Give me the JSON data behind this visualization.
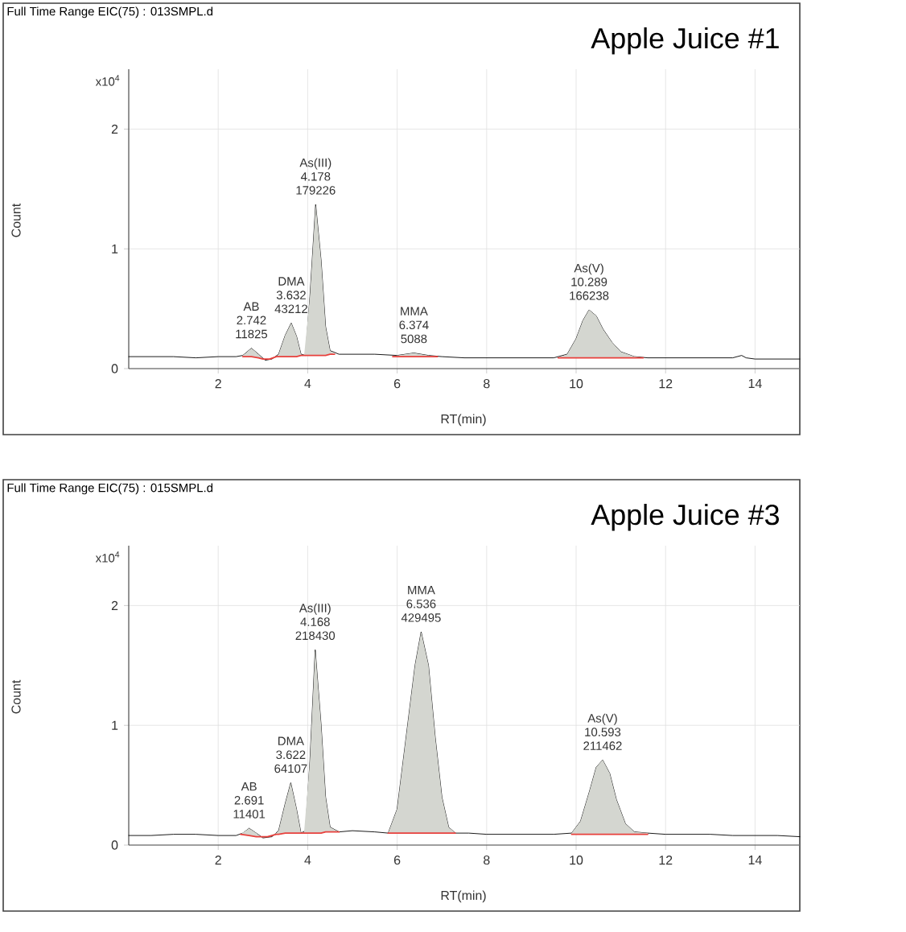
{
  "chart_data": [
    {
      "type": "line",
      "subtitle": "Full Time Range EIC(75) : 013SMPL.d",
      "title": "Apple Juice #1",
      "xlabel": "RT(min)",
      "ylabel": "Count",
      "xlim": [
        0,
        15
      ],
      "ylim": [
        0,
        2.5
      ],
      "xticks": [
        2,
        4,
        6,
        8,
        10,
        12,
        14
      ],
      "yticks": [
        0,
        1,
        2
      ],
      "grid": true,
      "annotations": [
        "x10$^{4}$",
        {
          "text": "AB 2.742 11825",
          "x": 2.742,
          "y": 0.17
        },
        {
          "text": "DMA 3.632 43212",
          "x": 3.632,
          "y": 0.38
        },
        {
          "text": "As(III) 4.178 179226",
          "x": 4.178,
          "y": 1.37
        },
        {
          "text": "MMA 6.374 5088",
          "x": 6.374,
          "y": 0.13
        },
        {
          "text": "As(V) 10.289 166238",
          "x": 10.289,
          "y": 0.49
        }
      ],
      "series": [
        {
          "color": "#000000",
          "x": [
            0,
            0.5,
            1,
            1.5,
            2,
            2.4,
            2.55,
            2.742,
            2.9,
            3.05,
            3.2,
            3.35,
            3.5,
            3.632,
            3.75,
            3.85,
            3.95,
            4.05,
            4.178,
            4.3,
            4.4,
            4.5,
            4.7,
            5,
            5.5,
            6,
            6.374,
            6.7,
            7,
            7.5,
            8,
            8.5,
            9,
            9.5,
            9.8,
            10,
            10.15,
            10.289,
            10.45,
            10.6,
            10.8,
            11,
            11.3,
            11.6,
            12,
            12.5,
            13,
            13.5,
            13.7,
            13.8,
            14,
            14.5,
            15
          ],
          "values": [
            0.1,
            0.1,
            0.1,
            0.09,
            0.1,
            0.1,
            0.11,
            0.17,
            0.12,
            0.07,
            0.08,
            0.12,
            0.28,
            0.38,
            0.27,
            0.12,
            0.11,
            0.6,
            1.37,
            0.9,
            0.35,
            0.15,
            0.12,
            0.12,
            0.12,
            0.11,
            0.13,
            0.11,
            0.1,
            0.09,
            0.09,
            0.09,
            0.09,
            0.09,
            0.12,
            0.25,
            0.4,
            0.49,
            0.44,
            0.33,
            0.22,
            0.14,
            0.1,
            0.09,
            0.09,
            0.09,
            0.09,
            0.09,
            0.11,
            0.09,
            0.08,
            0.08,
            0.08
          ]
        },
        {
          "color": "#e8403c",
          "x": [
            2.55,
            2.742,
            2.9,
            3.0,
            3.15,
            3.3,
            3.35,
            3.5,
            3.632,
            3.75,
            3.85,
            3.92,
            4.05,
            4.178,
            4.3,
            4.4,
            4.5,
            4.6,
            5.2,
            5.9,
            6.0,
            6.374,
            6.7,
            6.9,
            8,
            9.6,
            9.8,
            10.0,
            10.15,
            10.289,
            10.45,
            10.6,
            10.8,
            11.0,
            11.3,
            11.5
          ],
          "values": [
            0.1,
            0.1,
            0.09,
            0.08,
            0.08,
            0.1,
            0.1,
            0.1,
            0.1,
            0.1,
            0.11,
            0.11,
            0.11,
            0.11,
            0.11,
            0.11,
            0.12,
            0.12,
            null,
            0.1,
            0.1,
            0.1,
            0.1,
            0.1,
            null,
            0.09,
            0.09,
            0.09,
            0.09,
            0.09,
            0.09,
            0.09,
            0.09,
            0.09,
            0.09,
            0.09
          ],
          "lower": [
            0.1,
            0.1,
            0.09,
            0.08,
            0.08,
            0.1,
            0.1,
            0.1,
            0.1,
            0.1,
            0.11,
            0.11,
            0.11,
            0.11,
            0.11,
            0.11,
            0.12,
            0.12,
            null,
            0.1,
            0.1,
            0.1,
            0.1,
            0.1,
            null,
            0.09,
            0.09,
            0.09,
            0.09,
            0.09,
            0.09,
            0.09,
            0.09,
            0.09,
            0.09,
            0.09
          ],
          "upper": [
            0.11,
            0.17,
            0.12,
            0.08,
            0.08,
            0.1,
            0.12,
            0.28,
            0.38,
            0.27,
            0.12,
            0.11,
            0.6,
            1.37,
            0.9,
            0.35,
            0.15,
            0.12,
            null,
            0.1,
            0.11,
            0.13,
            0.11,
            0.1,
            null,
            0.09,
            0.12,
            0.25,
            0.4,
            0.49,
            0.44,
            0.33,
            0.22,
            0.14,
            0.1,
            0.09
          ]
        }
      ]
    },
    {
      "type": "line",
      "subtitle": "Full Time Range EIC(75) : 015SMPL.d",
      "title": "Apple Juice #3",
      "xlabel": "RT(min)",
      "ylabel": "Count",
      "xlim": [
        0,
        15
      ],
      "ylim": [
        0,
        2.5
      ],
      "xticks": [
        2,
        4,
        6,
        8,
        10,
        12,
        14
      ],
      "yticks": [
        0,
        1,
        2
      ],
      "grid": true,
      "annotations": [
        "x10$^{4}$",
        {
          "text": "AB 2.691 11401",
          "x": 2.691,
          "y": 0.14
        },
        {
          "text": "DMA 3.622 64107",
          "x": 3.622,
          "y": 0.52
        },
        {
          "text": "As(III) 4.168 218430",
          "x": 4.168,
          "y": 1.63
        },
        {
          "text": "MMA 6.536 429495",
          "x": 6.536,
          "y": 1.78
        },
        {
          "text": "As(V) 10.593 211462",
          "x": 10.593,
          "y": 0.71
        }
      ],
      "series": [
        {
          "color": "#000000",
          "x": [
            0,
            0.5,
            1,
            1.5,
            2,
            2.4,
            2.55,
            2.691,
            2.85,
            3,
            3.2,
            3.35,
            3.5,
            3.622,
            3.75,
            3.85,
            3.95,
            4.05,
            4.168,
            4.3,
            4.4,
            4.5,
            4.7,
            5,
            5.5,
            5.8,
            6,
            6.2,
            6.4,
            6.536,
            6.7,
            6.85,
            7,
            7.15,
            7.3,
            7.6,
            8,
            8.5,
            9,
            9.5,
            9.9,
            10.1,
            10.3,
            10.45,
            10.593,
            10.75,
            10.9,
            11.1,
            11.3,
            11.6,
            12,
            12.5,
            13,
            13.5,
            14,
            14.5,
            15
          ],
          "values": [
            0.08,
            0.08,
            0.09,
            0.09,
            0.08,
            0.08,
            0.1,
            0.14,
            0.1,
            0.06,
            0.07,
            0.12,
            0.35,
            0.52,
            0.3,
            0.1,
            0.12,
            0.7,
            1.63,
            1.0,
            0.4,
            0.15,
            0.11,
            0.12,
            0.11,
            0.1,
            0.3,
            0.9,
            1.5,
            1.78,
            1.5,
            0.9,
            0.4,
            0.15,
            0.1,
            0.1,
            0.09,
            0.09,
            0.09,
            0.09,
            0.1,
            0.2,
            0.45,
            0.65,
            0.71,
            0.6,
            0.38,
            0.18,
            0.11,
            0.1,
            0.09,
            0.09,
            0.09,
            0.08,
            0.08,
            0.08,
            0.07
          ]
        },
        {
          "color": "#e8403c",
          "x": [
            2.5,
            2.691,
            2.85,
            2.95,
            3.1,
            3.3,
            3.35,
            3.5,
            3.622,
            3.75,
            3.85,
            3.92,
            4.05,
            4.168,
            4.3,
            4.4,
            4.5,
            4.7,
            5.3,
            5.8,
            6.0,
            6.2,
            6.4,
            6.536,
            6.7,
            6.85,
            7.0,
            7.15,
            7.3,
            8.5,
            9.9,
            10.1,
            10.3,
            10.45,
            10.593,
            10.75,
            10.9,
            11.1,
            11.3,
            11.6
          ],
          "values": [
            0.09,
            0.08,
            0.07,
            0.07,
            0.07,
            0.09,
            0.09,
            0.1,
            0.1,
            0.1,
            0.1,
            0.1,
            0.1,
            0.1,
            0.1,
            0.11,
            0.11,
            0.11,
            null,
            0.1,
            0.1,
            0.1,
            0.1,
            0.1,
            0.1,
            0.1,
            0.1,
            0.1,
            0.1,
            null,
            0.09,
            0.09,
            0.09,
            0.09,
            0.09,
            0.09,
            0.09,
            0.09,
            0.09,
            0.09
          ],
          "lower": [
            0.09,
            0.08,
            0.07,
            0.07,
            0.07,
            0.09,
            0.09,
            0.1,
            0.1,
            0.1,
            0.1,
            0.1,
            0.1,
            0.1,
            0.1,
            0.11,
            0.11,
            0.11,
            null,
            0.1,
            0.1,
            0.1,
            0.1,
            0.1,
            0.1,
            0.1,
            0.1,
            0.1,
            0.1,
            null,
            0.09,
            0.09,
            0.09,
            0.09,
            0.09,
            0.09,
            0.09,
            0.09,
            0.09,
            0.09
          ],
          "upper": [
            0.09,
            0.14,
            0.1,
            0.07,
            0.07,
            0.1,
            0.12,
            0.35,
            0.52,
            0.3,
            0.1,
            0.11,
            0.7,
            1.63,
            1.0,
            0.4,
            0.15,
            0.11,
            null,
            0.1,
            0.3,
            0.9,
            1.5,
            1.78,
            1.5,
            0.9,
            0.4,
            0.15,
            0.1,
            null,
            0.1,
            0.2,
            0.45,
            0.65,
            0.71,
            0.6,
            0.38,
            0.18,
            0.11,
            0.1
          ]
        }
      ]
    }
  ]
}
